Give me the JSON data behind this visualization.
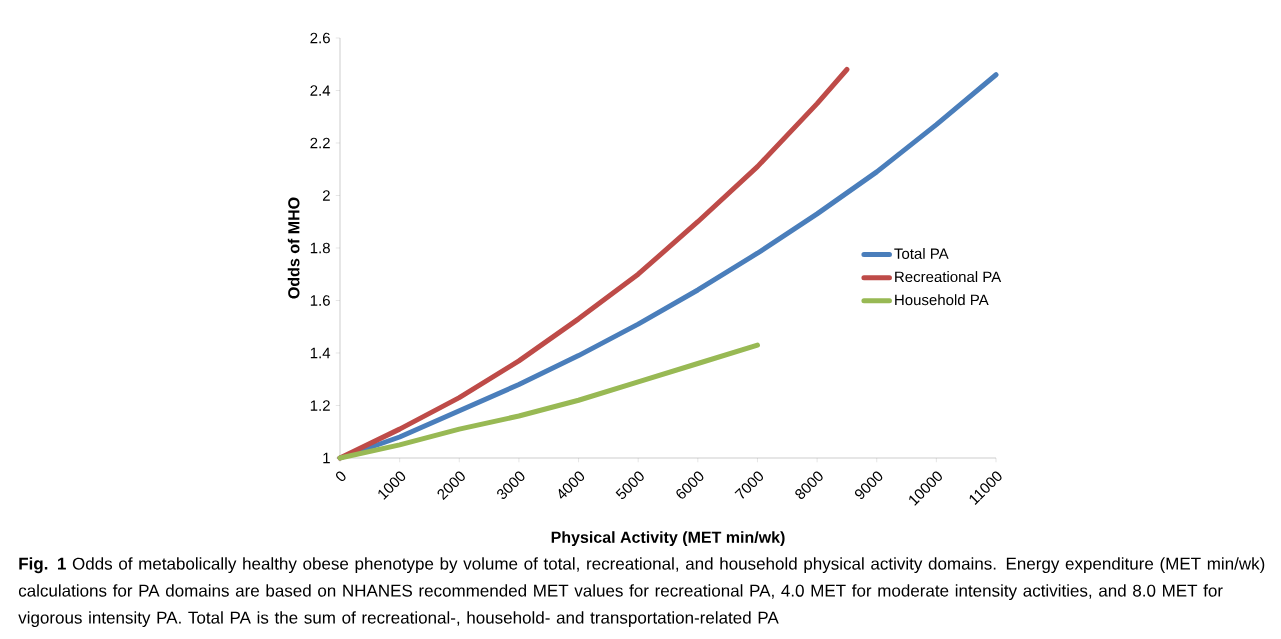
{
  "chart_data": {
    "type": "line",
    "xlabel": "Physical Activity (MET min/wk)",
    "ylabel": "Odds of MHO",
    "xlim": [
      0,
      11000
    ],
    "xticks": [
      0,
      1000,
      2000,
      3000,
      4000,
      5000,
      6000,
      7000,
      8000,
      9000,
      10000,
      11000
    ],
    "ylim": [
      1,
      2.6
    ],
    "yticks": [
      1,
      1.2,
      1.4,
      1.6,
      1.8,
      2,
      2.2,
      2.4,
      2.6
    ],
    "grid": false,
    "legend": "right",
    "marker": "none",
    "line_style": "solid",
    "series": [
      {
        "name": "Total PA",
        "color": "#4a7ebb",
        "x": [
          0,
          1000,
          2000,
          3000,
          4000,
          5000,
          6000,
          7000,
          8000,
          9000,
          10000,
          11000
        ],
        "values": [
          1,
          1.08,
          1.18,
          1.28,
          1.39,
          1.51,
          1.64,
          1.78,
          1.93,
          2.09,
          2.27,
          2.46
        ]
      },
      {
        "name": "Recreational PA",
        "color": "#be4b48",
        "x": [
          0,
          1000,
          2000,
          3000,
          4000,
          5000,
          6000,
          7000,
          8000,
          8500
        ],
        "values": [
          1,
          1.11,
          1.23,
          1.37,
          1.53,
          1.7,
          1.9,
          2.11,
          2.35,
          2.48
        ]
      },
      {
        "name": "Household PA",
        "color": "#98b954",
        "x": [
          0,
          1000,
          2000,
          3000,
          4000,
          5000,
          6000,
          7000
        ],
        "values": [
          1,
          1.05,
          1.11,
          1.16,
          1.22,
          1.29,
          1.36,
          1.43
        ]
      }
    ],
    "annotations": [
      "**Fig. 1** Odds of metabolically healthy obese phenotype by volume of total, recreational, and household physical activity domains. Energy expenditure (MET min/wk) calculations for PA domains are based on NHANES recommended MET values for recreational PA, 4.0 MET for moderate intensity activities, and 8.0 MET for vigorous intensity PA. Total PA is the sum of recreational-, household- and transportation-related PA"
    ]
  }
}
